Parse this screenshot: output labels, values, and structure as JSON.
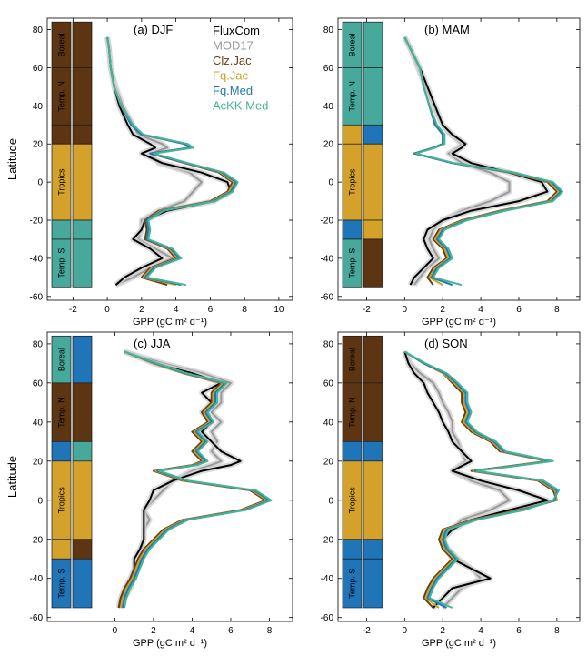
{
  "figure": {
    "colors": {
      "boreal_band": "#5e3512",
      "temperate_band": "#46a99c",
      "tropics_band": "#d4a12a",
      "blue_band": "#1f75b8"
    }
  },
  "chart_data": [
    {
      "type": "line",
      "title": "(a)  DJF",
      "xlabel": "GPP (gC m² d⁻¹)",
      "ylabel": "Latitude",
      "xlim": [
        -3.5,
        10.8
      ],
      "ylim": [
        -62,
        86
      ],
      "xticks": [
        -2,
        0,
        2,
        4,
        6,
        8,
        10
      ],
      "yticks": [
        -60,
        -40,
        -20,
        0,
        20,
        40,
        60,
        80
      ],
      "legend_position": "top",
      "legend": [
        "FluxCom",
        "MOD17",
        "Clz.Jac",
        "Fq.Jac",
        "Fq.Med",
        "AcKK.Med"
      ],
      "series_colors": [
        "#000000",
        "#999999",
        "#6b3d12",
        "#c9a227",
        "#1f78b4",
        "#45b39a"
      ],
      "region_labels": [
        "Boreal",
        "Temp. N",
        "Tropics",
        "Temp. S"
      ],
      "bands": [
        {
          "from": 60,
          "to": 84,
          "left": "boreal",
          "right": "boreal",
          "label": "Boreal"
        },
        {
          "from": 30,
          "to": 60,
          "left": "boreal",
          "right": "boreal",
          "label": "Temp. N"
        },
        {
          "from": 20,
          "to": 30,
          "left": "boreal",
          "right": "boreal",
          "label": ""
        },
        {
          "from": -20,
          "to": 20,
          "left": "tropics",
          "right": "tropics",
          "label": "Tropics"
        },
        {
          "from": -30,
          "to": -20,
          "left": "temperate",
          "right": "temperate",
          "label": ""
        },
        {
          "from": -55,
          "to": -30,
          "left": "temperate",
          "right": "temperate",
          "label": "Temp. S"
        }
      ],
      "latitudes": [
        76,
        70,
        60,
        50,
        40,
        30,
        25,
        20,
        18,
        15,
        10,
        5,
        0,
        -5,
        -10,
        -15,
        -20,
        -25,
        -30,
        -35,
        -40,
        -45,
        -50,
        -54
      ],
      "series": [
        {
          "values": [
            0.0,
            0.1,
            0.2,
            0.4,
            0.7,
            1.2,
            1.5,
            2.5,
            2.8,
            2.0,
            3.2,
            5.5,
            7.0,
            7.2,
            6.2,
            3.5,
            2.2,
            2.0,
            1.5,
            2.5,
            3.2,
            2.0,
            1.0,
            0.5
          ]
        },
        {
          "values": [
            0.0,
            0.1,
            0.2,
            0.5,
            0.9,
            1.5,
            1.8,
            3.2,
            3.5,
            2.5,
            3.0,
            4.8,
            5.5,
            5.0,
            4.5,
            3.0,
            2.0,
            2.0,
            1.8,
            2.8,
            3.8,
            2.5,
            1.5,
            0.5
          ]
        },
        {
          "values": [
            0.0,
            0.1,
            0.2,
            0.4,
            0.8,
            1.4,
            2.0,
            4.5,
            4.8,
            2.5,
            4.5,
            6.5,
            7.3,
            7.0,
            6.0,
            3.0,
            2.2,
            2.3,
            2.2,
            3.5,
            4.0,
            2.5,
            2.0,
            3.5
          ]
        },
        {
          "values": [
            0.0,
            0.1,
            0.2,
            0.4,
            0.8,
            1.4,
            2.0,
            4.6,
            4.9,
            2.6,
            4.6,
            6.6,
            7.4,
            7.1,
            6.1,
            3.1,
            2.3,
            2.4,
            2.3,
            3.6,
            4.1,
            2.6,
            2.1,
            4.0
          ]
        },
        {
          "values": [
            0.0,
            0.1,
            0.2,
            0.4,
            0.8,
            1.4,
            2.0,
            4.5,
            4.8,
            2.5,
            4.6,
            6.7,
            7.5,
            7.2,
            6.2,
            3.2,
            2.3,
            2.4,
            2.3,
            3.7,
            4.2,
            2.7,
            2.2,
            4.3
          ]
        },
        {
          "values": [
            0.0,
            0.1,
            0.2,
            0.4,
            0.8,
            1.5,
            2.1,
            4.7,
            5.0,
            2.7,
            4.7,
            6.8,
            7.6,
            7.3,
            6.3,
            3.3,
            2.4,
            2.5,
            2.4,
            3.8,
            4.3,
            2.8,
            2.3,
            4.6
          ]
        }
      ]
    },
    {
      "type": "line",
      "title": "(b)  MAM",
      "xlabel": "GPP (gC m² d⁻¹)",
      "ylabel": "",
      "xlim": [
        -3.5,
        9.2
      ],
      "ylim": [
        -62,
        86
      ],
      "xticks": [
        -2,
        0,
        2,
        4,
        6,
        8
      ],
      "yticks": [
        -60,
        -40,
        -20,
        0,
        20,
        40,
        60,
        80
      ],
      "legend_position": "",
      "region_labels": [
        "Boreal",
        "Temp. N",
        "Tropics",
        "Temp. S"
      ],
      "bands": [
        {
          "from": 60,
          "to": 84,
          "left": "temperate",
          "right": "temperate",
          "label": "Boreal"
        },
        {
          "from": 30,
          "to": 60,
          "left": "temperate",
          "right": "temperate",
          "label": "Temp. N"
        },
        {
          "from": 20,
          "to": 30,
          "left": "tropics",
          "right": "blue",
          "label": ""
        },
        {
          "from": -20,
          "to": 20,
          "left": "tropics",
          "right": "tropics",
          "label": "Tropics"
        },
        {
          "from": -30,
          "to": -20,
          "left": "blue",
          "right": "tropics",
          "label": ""
        },
        {
          "from": -55,
          "to": -30,
          "left": "temperate",
          "right": "boreal",
          "label": "Temp. S"
        }
      ],
      "latitudes": [
        76,
        70,
        60,
        50,
        40,
        30,
        25,
        20,
        18,
        15,
        10,
        5,
        0,
        -5,
        -10,
        -15,
        -20,
        -25,
        -30,
        -35,
        -40,
        -45,
        -50,
        -54
      ],
      "series": [
        {
          "values": [
            0.0,
            0.3,
            0.8,
            1.2,
            1.6,
            2.0,
            2.5,
            3.2,
            3.0,
            2.5,
            3.5,
            5.5,
            7.2,
            7.5,
            6.0,
            3.5,
            2.0,
            1.2,
            1.0,
            1.2,
            1.5,
            1.0,
            0.5,
            0.3
          ]
        },
        {
          "values": [
            0.0,
            0.3,
            0.7,
            1.1,
            1.5,
            2.0,
            2.4,
            3.0,
            2.8,
            2.3,
            3.0,
            4.5,
            5.5,
            5.5,
            4.5,
            3.0,
            2.0,
            1.5,
            1.3,
            1.5,
            1.8,
            1.2,
            0.8,
            0.5
          ]
        },
        {
          "values": [
            0.0,
            0.3,
            0.8,
            1.0,
            1.3,
            1.6,
            2.0,
            2.0,
            1.5,
            0.5,
            2.5,
            5.5,
            7.5,
            8.0,
            7.5,
            5.0,
            3.0,
            1.8,
            1.5,
            2.0,
            2.2,
            1.5,
            1.2,
            1.5
          ]
        },
        {
          "values": [
            0.0,
            0.3,
            0.8,
            1.0,
            1.3,
            1.6,
            2.0,
            2.0,
            1.5,
            0.5,
            2.5,
            5.6,
            7.6,
            8.1,
            7.6,
            5.1,
            3.1,
            1.9,
            1.6,
            2.1,
            2.3,
            1.6,
            1.3,
            2.0
          ]
        },
        {
          "values": [
            0.0,
            0.3,
            0.8,
            1.0,
            1.3,
            1.6,
            2.0,
            2.0,
            1.5,
            0.5,
            2.5,
            5.7,
            7.7,
            8.2,
            7.7,
            5.2,
            3.2,
            2.0,
            1.7,
            2.2,
            2.4,
            1.7,
            1.4,
            2.5
          ]
        },
        {
          "values": [
            0.0,
            0.3,
            0.8,
            1.0,
            1.3,
            1.7,
            2.1,
            2.1,
            1.6,
            0.6,
            2.6,
            5.8,
            7.8,
            8.3,
            7.8,
            5.3,
            3.3,
            2.1,
            1.8,
            2.3,
            2.5,
            1.8,
            1.5,
            3.0
          ]
        }
      ]
    },
    {
      "type": "line",
      "title": "(c)  JJA",
      "xlabel": "GPP (gC m² d⁻¹)",
      "ylabel": "Latitude",
      "xlim": [
        -3.5,
        9.2
      ],
      "ylim": [
        -62,
        86
      ],
      "xticks": [
        0,
        2,
        4,
        6,
        8
      ],
      "yticks": [
        -60,
        -40,
        -20,
        0,
        20,
        40,
        60,
        80
      ],
      "legend_position": "",
      "region_labels": [
        "Boreal",
        "Temp. N",
        "Tropics",
        "Temp. S"
      ],
      "bands": [
        {
          "from": 60,
          "to": 84,
          "left": "temperate",
          "right": "blue",
          "label": "Boreal"
        },
        {
          "from": 30,
          "to": 60,
          "left": "boreal",
          "right": "boreal",
          "label": "Temp. N"
        },
        {
          "from": 20,
          "to": 30,
          "left": "blue",
          "right": "temperate",
          "label": ""
        },
        {
          "from": -20,
          "to": 20,
          "left": "tropics",
          "right": "tropics",
          "label": "Tropics"
        },
        {
          "from": -30,
          "to": -20,
          "left": "tropics",
          "right": "boreal",
          "label": ""
        },
        {
          "from": -55,
          "to": -30,
          "left": "blue",
          "right": "blue",
          "label": "Temp. S"
        }
      ],
      "latitudes": [
        76,
        70,
        65,
        60,
        55,
        50,
        45,
        40,
        35,
        30,
        25,
        20,
        18,
        15,
        10,
        5,
        0,
        -5,
        -10,
        -15,
        -20,
        -25,
        -30,
        -35,
        -40,
        -45,
        -50,
        -55
      ],
      "series": [
        {
          "values": [
            0.5,
            2.0,
            4.0,
            5.5,
            4.5,
            5.0,
            4.5,
            5.0,
            4.5,
            5.0,
            5.5,
            6.5,
            6.0,
            4.5,
            3.0,
            2.0,
            1.8,
            1.5,
            1.5,
            1.5,
            1.5,
            1.3,
            1.0,
            1.0,
            0.8,
            0.5,
            0.3,
            0.2
          ]
        },
        {
          "values": [
            0.5,
            2.5,
            4.5,
            6.0,
            5.5,
            5.5,
            5.0,
            5.5,
            5.0,
            5.3,
            5.0,
            5.5,
            5.0,
            4.0,
            3.0,
            2.5,
            2.0,
            1.5,
            1.8,
            1.5,
            1.5,
            1.4,
            1.3,
            1.2,
            1.0,
            0.8,
            0.5,
            0.3
          ]
        },
        {
          "values": [
            0.5,
            2.0,
            3.5,
            5.5,
            5.0,
            5.0,
            4.5,
            4.8,
            4.0,
            4.5,
            4.0,
            4.5,
            4.0,
            2.0,
            3.5,
            7.0,
            7.8,
            6.5,
            3.5,
            2.5,
            2.0,
            1.5,
            1.2,
            1.0,
            0.8,
            0.5,
            0.3,
            0.2
          ]
        },
        {
          "values": [
            0.5,
            2.0,
            3.5,
            5.6,
            5.1,
            5.1,
            4.6,
            4.9,
            4.1,
            4.6,
            4.1,
            4.6,
            4.1,
            2.1,
            3.6,
            7.1,
            7.9,
            6.6,
            3.6,
            2.6,
            2.1,
            1.6,
            1.3,
            1.1,
            0.9,
            0.6,
            0.4,
            0.3
          ]
        },
        {
          "values": [
            0.5,
            2.1,
            3.6,
            5.7,
            5.2,
            5.2,
            4.7,
            5.0,
            4.2,
            4.7,
            4.2,
            4.7,
            4.2,
            2.2,
            3.7,
            7.2,
            8.0,
            6.7,
            3.7,
            2.7,
            2.2,
            1.7,
            1.4,
            1.2,
            1.0,
            0.7,
            0.5,
            0.4
          ]
        },
        {
          "values": [
            0.5,
            2.2,
            3.7,
            5.8,
            5.3,
            5.3,
            4.8,
            5.1,
            4.3,
            4.8,
            4.3,
            4.8,
            4.3,
            2.3,
            3.8,
            7.3,
            8.1,
            6.8,
            3.8,
            2.8,
            2.3,
            1.8,
            1.5,
            1.3,
            1.1,
            0.8,
            0.6,
            0.5
          ]
        }
      ]
    },
    {
      "type": "line",
      "title": "(d)  SON",
      "xlabel": "GPP (gC m² d⁻¹)",
      "ylabel": "",
      "xlim": [
        -3.5,
        9.2
      ],
      "ylim": [
        -62,
        86
      ],
      "xticks": [
        -2,
        0,
        2,
        4,
        6,
        8
      ],
      "yticks": [
        -60,
        -40,
        -20,
        0,
        20,
        40,
        60,
        80
      ],
      "legend_position": "",
      "region_labels": [
        "Boreal",
        "Temp. N",
        "Tropics",
        "Temp. S"
      ],
      "bands": [
        {
          "from": 60,
          "to": 84,
          "left": "boreal",
          "right": "boreal",
          "label": "Boreal"
        },
        {
          "from": 30,
          "to": 60,
          "left": "boreal",
          "right": "boreal",
          "label": "Temp. N"
        },
        {
          "from": 20,
          "to": 30,
          "left": "blue",
          "right": "blue",
          "label": ""
        },
        {
          "from": -20,
          "to": 20,
          "left": "tropics",
          "right": "tropics",
          "label": "Tropics"
        },
        {
          "from": -30,
          "to": -20,
          "left": "blue",
          "right": "blue",
          "label": ""
        },
        {
          "from": -55,
          "to": -30,
          "left": "blue",
          "right": "blue",
          "label": "Temp. S"
        }
      ],
      "latitudes": [
        76,
        70,
        65,
        60,
        55,
        50,
        45,
        40,
        35,
        30,
        25,
        20,
        15,
        10,
        5,
        0,
        -5,
        -10,
        -15,
        -20,
        -25,
        -30,
        -35,
        -40,
        -45,
        -50,
        -55
      ],
      "series": [
        {
          "values": [
            0.0,
            0.2,
            0.5,
            1.0,
            1.2,
            1.5,
            1.8,
            2.0,
            2.3,
            2.5,
            3.0,
            3.5,
            2.5,
            4.0,
            6.0,
            7.5,
            5.5,
            3.5,
            2.5,
            2.0,
            2.2,
            2.5,
            3.5,
            4.5,
            2.5,
            2.0,
            1.5
          ]
        },
        {
          "values": [
            0.0,
            0.3,
            0.8,
            1.5,
            1.8,
            2.0,
            2.3,
            2.5,
            2.5,
            2.8,
            3.0,
            3.2,
            2.5,
            3.5,
            5.0,
            5.5,
            4.5,
            3.0,
            2.5,
            2.0,
            2.3,
            2.8,
            3.5,
            4.0,
            3.0,
            2.5,
            2.0
          ]
        },
        {
          "values": [
            0.0,
            1.0,
            2.0,
            2.5,
            3.0,
            3.0,
            3.2,
            3.0,
            3.5,
            4.5,
            5.0,
            7.5,
            3.5,
            7.0,
            7.8,
            8.0,
            6.0,
            3.5,
            2.0,
            1.8,
            2.0,
            2.5,
            2.0,
            1.5,
            1.2,
            1.0,
            1.5
          ]
        },
        {
          "values": [
            0.0,
            1.0,
            2.0,
            2.6,
            3.1,
            3.1,
            3.3,
            3.1,
            3.6,
            4.6,
            5.1,
            7.6,
            3.6,
            7.1,
            7.9,
            8.0,
            6.1,
            3.6,
            2.1,
            1.9,
            2.1,
            2.6,
            2.1,
            1.6,
            1.3,
            1.1,
            1.8
          ]
        },
        {
          "values": [
            0.0,
            1.0,
            2.1,
            2.7,
            3.2,
            3.2,
            3.4,
            3.2,
            3.7,
            4.7,
            5.2,
            7.7,
            3.7,
            7.2,
            8.0,
            7.9,
            6.2,
            3.7,
            2.2,
            2.0,
            2.2,
            2.7,
            2.2,
            1.7,
            1.4,
            1.2,
            2.2
          ]
        },
        {
          "values": [
            0.0,
            1.1,
            2.2,
            2.8,
            3.3,
            3.3,
            3.5,
            3.3,
            3.8,
            4.8,
            5.3,
            7.8,
            3.8,
            7.3,
            8.1,
            7.8,
            6.3,
            3.8,
            2.3,
            2.1,
            2.3,
            2.8,
            2.3,
            1.8,
            1.5,
            1.3,
            2.5
          ]
        }
      ]
    }
  ]
}
